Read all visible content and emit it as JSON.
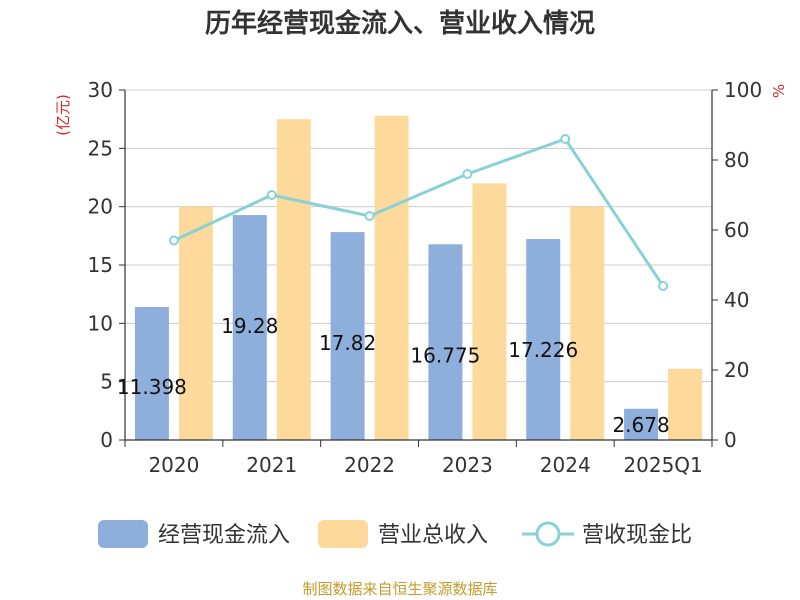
{
  "chart_data": {
    "type": "bar",
    "title": "历年经营现金流入、营业收入情况",
    "categories": [
      "2020",
      "2021",
      "2022",
      "2023",
      "2024",
      "2025Q1"
    ],
    "y_left_unit": "(亿元)",
    "y_right_unit": "%",
    "y_left_range": [
      0,
      30
    ],
    "y_left_ticks": [
      0,
      5,
      10,
      15,
      20,
      25,
      30
    ],
    "y_right_range": [
      0,
      100
    ],
    "y_right_ticks": [
      0,
      20,
      40,
      60,
      80,
      100
    ],
    "grid": true,
    "legend_position": "bottom",
    "series": [
      {
        "name": "经营现金流入",
        "type": "bar",
        "axis": "left",
        "color": "#8eaedb",
        "values": [
          11.398,
          19.28,
          17.82,
          16.775,
          17.226,
          2.678
        ],
        "labels": [
          "11.398",
          "19.28",
          "17.82",
          "16.775",
          "17.226",
          "2.678"
        ]
      },
      {
        "name": "营业总收入",
        "type": "bar",
        "axis": "left",
        "color": "#fdd99b",
        "values": [
          20.0,
          27.5,
          27.8,
          22.0,
          20.0,
          6.1
        ]
      },
      {
        "name": "营收现金比",
        "type": "line",
        "axis": "right",
        "color": "#88d2d6",
        "values": [
          57,
          70,
          64,
          76,
          86,
          44
        ]
      }
    ]
  },
  "footer": {
    "source": "制图数据来自恒生聚源数据库"
  }
}
